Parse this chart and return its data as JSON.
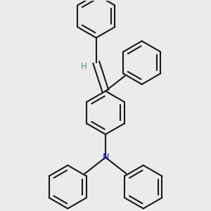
{
  "background_color": "#ebebeb",
  "bond_color": "#1a1a1a",
  "N_color": "#0000cc",
  "H_color": "#4a9090",
  "line_width": 1.5,
  "figsize": [
    3.0,
    3.0
  ],
  "dpi": 100
}
